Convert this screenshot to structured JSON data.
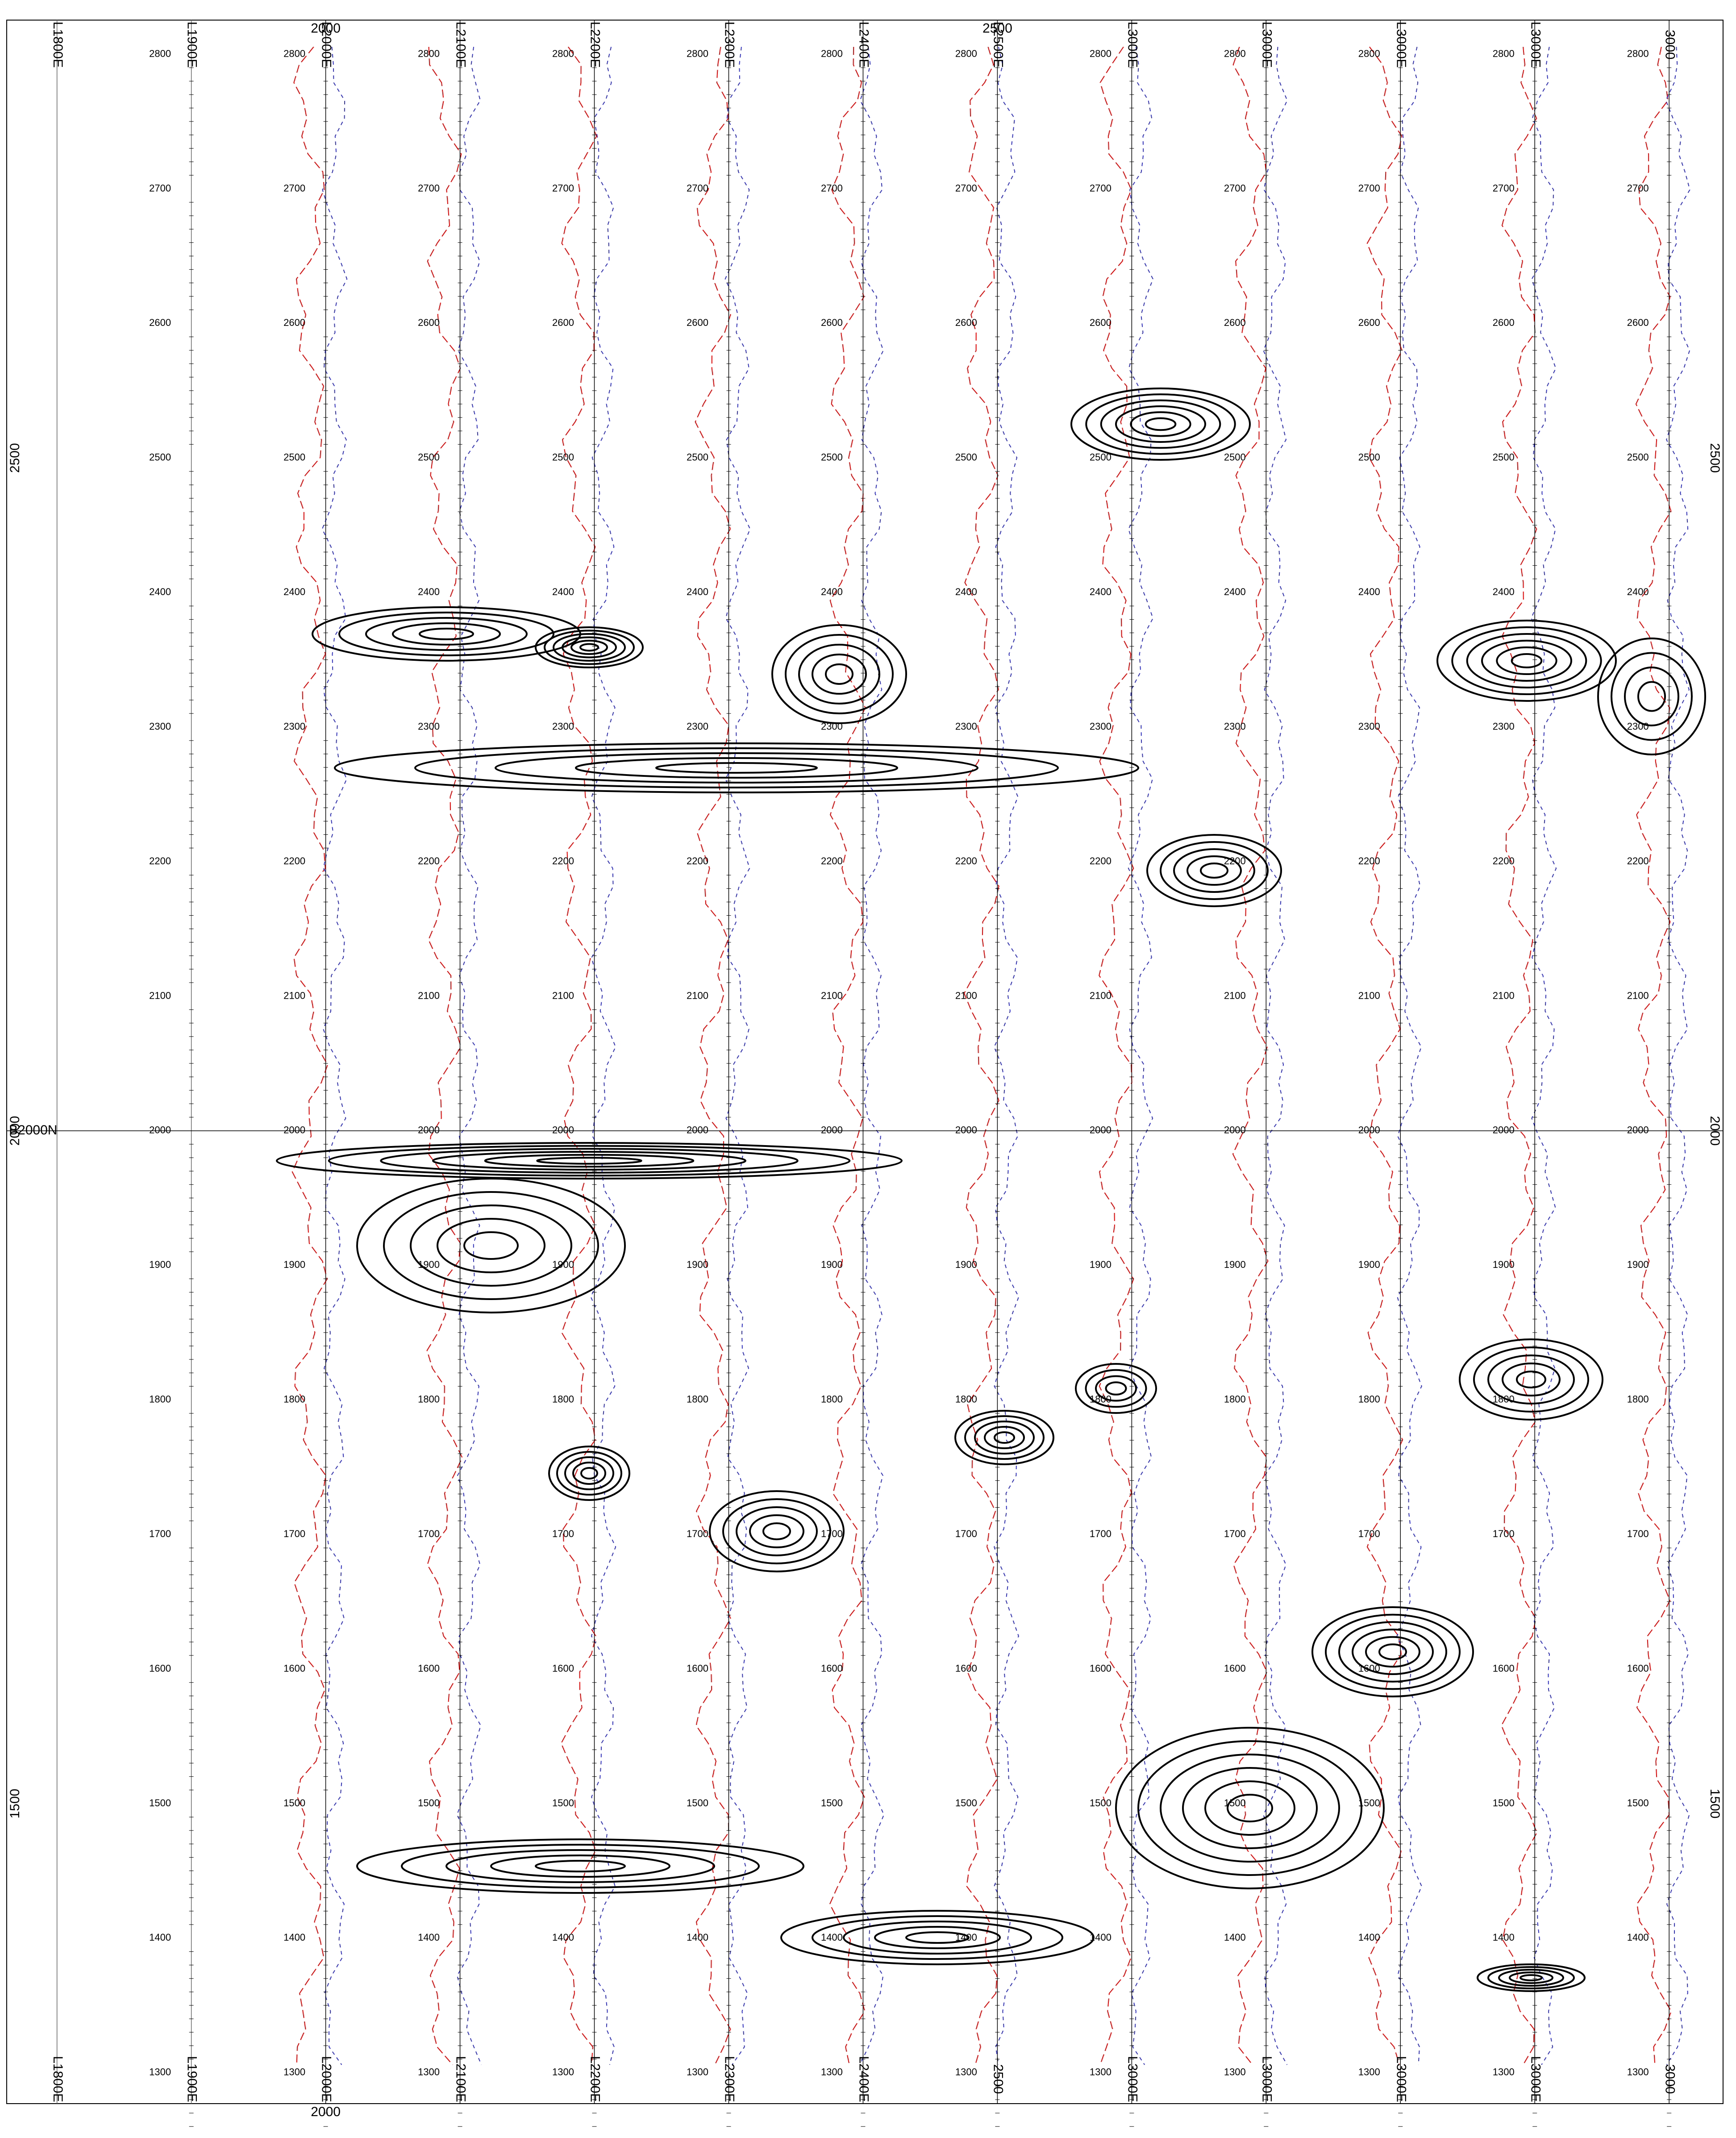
{
  "map": {
    "top_labels": [
      "L1800E",
      "L1900E",
      "L2000E",
      "L2100E",
      "L2200E",
      "L2300E",
      "L2400E",
      "L2500E",
      "L3000E",
      "L3000E",
      "L3000E",
      "L3000E",
      "3000"
    ],
    "top_numbers": [
      "2000",
      "2500"
    ],
    "bottom_labels": [
      "L1800E",
      "L1900E",
      "L2000E",
      "L2100E",
      "L2200E",
      "L2300E",
      "L2400E",
      "2500",
      "L3000E",
      "L3000E",
      "L3000E",
      "L3000E",
      "3000"
    ],
    "bottom_numbers": [
      "2000"
    ],
    "northings": [
      "2800",
      "2700",
      "2600",
      "2500",
      "2400",
      "2300",
      "2200",
      "2100",
      "2000",
      "1900",
      "1800",
      "1700",
      "1600",
      "1500",
      "1400",
      "1300"
    ],
    "side_labels": [
      "2500",
      "2000",
      "1500"
    ],
    "baseline_label": "B2000N"
  }
}
